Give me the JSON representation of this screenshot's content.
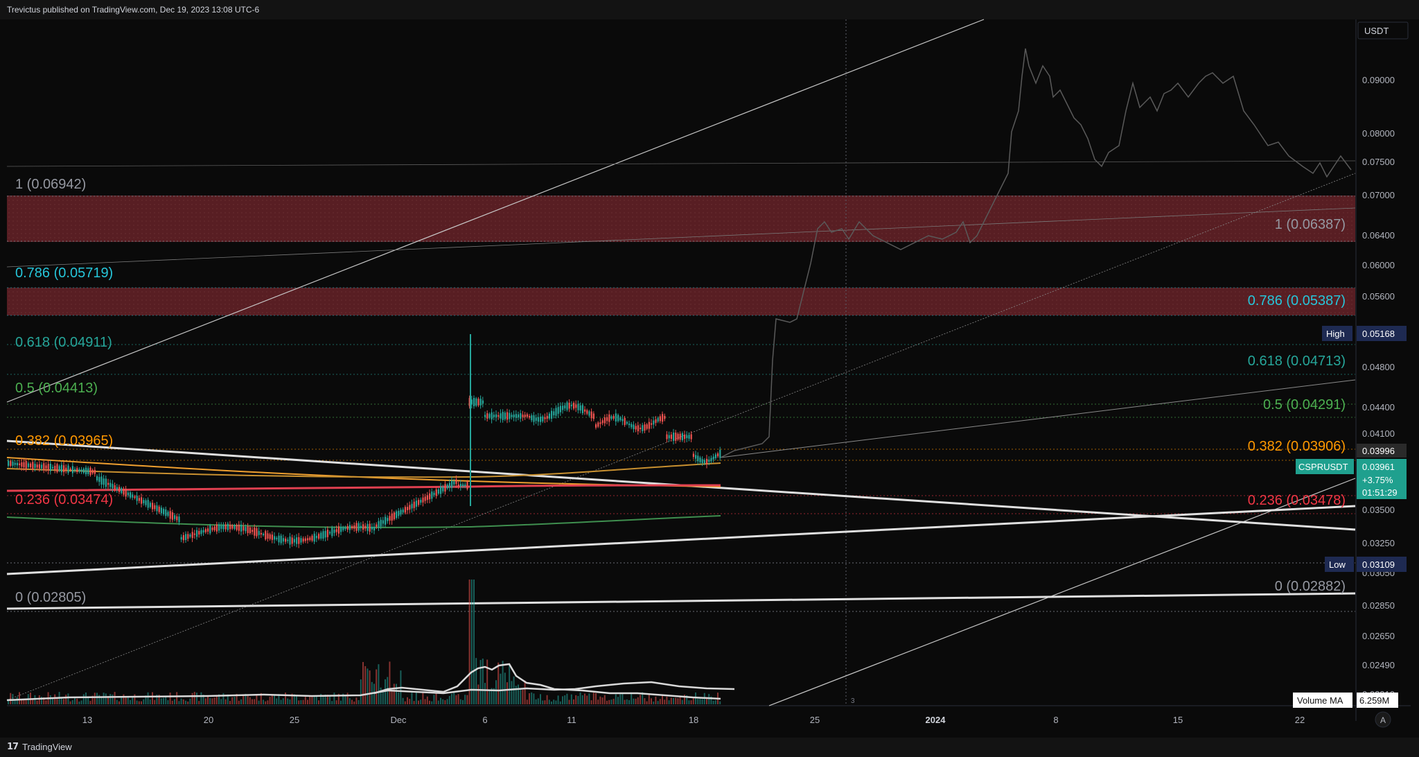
{
  "header": {
    "publish_text": "Trevictus published on TradingView.com, Dec 19, 2023 13:08 UTC-6"
  },
  "footer": {
    "brand": "TradingView",
    "logo": "17"
  },
  "axis": {
    "currency": "USDT",
    "ticks": [
      "0.09000",
      "0.08000",
      "0.07500",
      "0.07000",
      "0.06400",
      "0.06000",
      "0.05600",
      "0.04800",
      "0.04400",
      "0.04100",
      "0.03500",
      "0.03250",
      "0.03050",
      "0.02850",
      "0.02650",
      "0.02490",
      "0.02310"
    ],
    "x_ticks": [
      "13",
      "20",
      "25",
      "Dec",
      "6",
      "11",
      "18",
      "25",
      "2024",
      "8",
      "15",
      "22"
    ],
    "scale_mode": "A"
  },
  "badges": {
    "high_label": "High",
    "high_value": "0.05168",
    "low_label": "Low",
    "low_value": "0.03109",
    "last_value": "0.03996",
    "symbol": "CSPRUSDT",
    "price": "0.03961",
    "change": "+3.75%",
    "countdown": "01:51:29",
    "volume_ma_label": "Volume MA",
    "volume_ma_value": "6.259M",
    "marker": "3"
  },
  "fib_left": [
    {
      "text": "1 (0.06942)",
      "color": "#9598a1"
    },
    {
      "text": "0.786 (0.05719)",
      "color": "#26c6da"
    },
    {
      "text": "0.618 (0.04911)",
      "color": "#26a69a"
    },
    {
      "text": "0.5 (0.04413)",
      "color": "#4caf50"
    },
    {
      "text": "0.382 (0.03965)",
      "color": "#ff9800"
    },
    {
      "text": "0.236 (0.03474)",
      "color": "#f23645"
    },
    {
      "text": "0 (0.02805)",
      "color": "#9598a1"
    }
  ],
  "fib_right": [
    {
      "text": "1 (0.06387)",
      "color": "#9598a1"
    },
    {
      "text": "0.786 (0.05387)",
      "color": "#26c6da"
    },
    {
      "text": "0.618 (0.04713)",
      "color": "#26a69a"
    },
    {
      "text": "0.5 (0.04291)",
      "color": "#4caf50"
    },
    {
      "text": "0.382 (0.03906)",
      "color": "#ff9800"
    },
    {
      "text": "0.236 (0.03478)",
      "color": "#f23645"
    },
    {
      "text": "0 (0.02882)",
      "color": "#9598a1"
    }
  ],
  "colors": {
    "up": "#26a69a",
    "down": "#ef5350",
    "zone": "#5c1f24",
    "grid": "#1c1c1c"
  }
}
